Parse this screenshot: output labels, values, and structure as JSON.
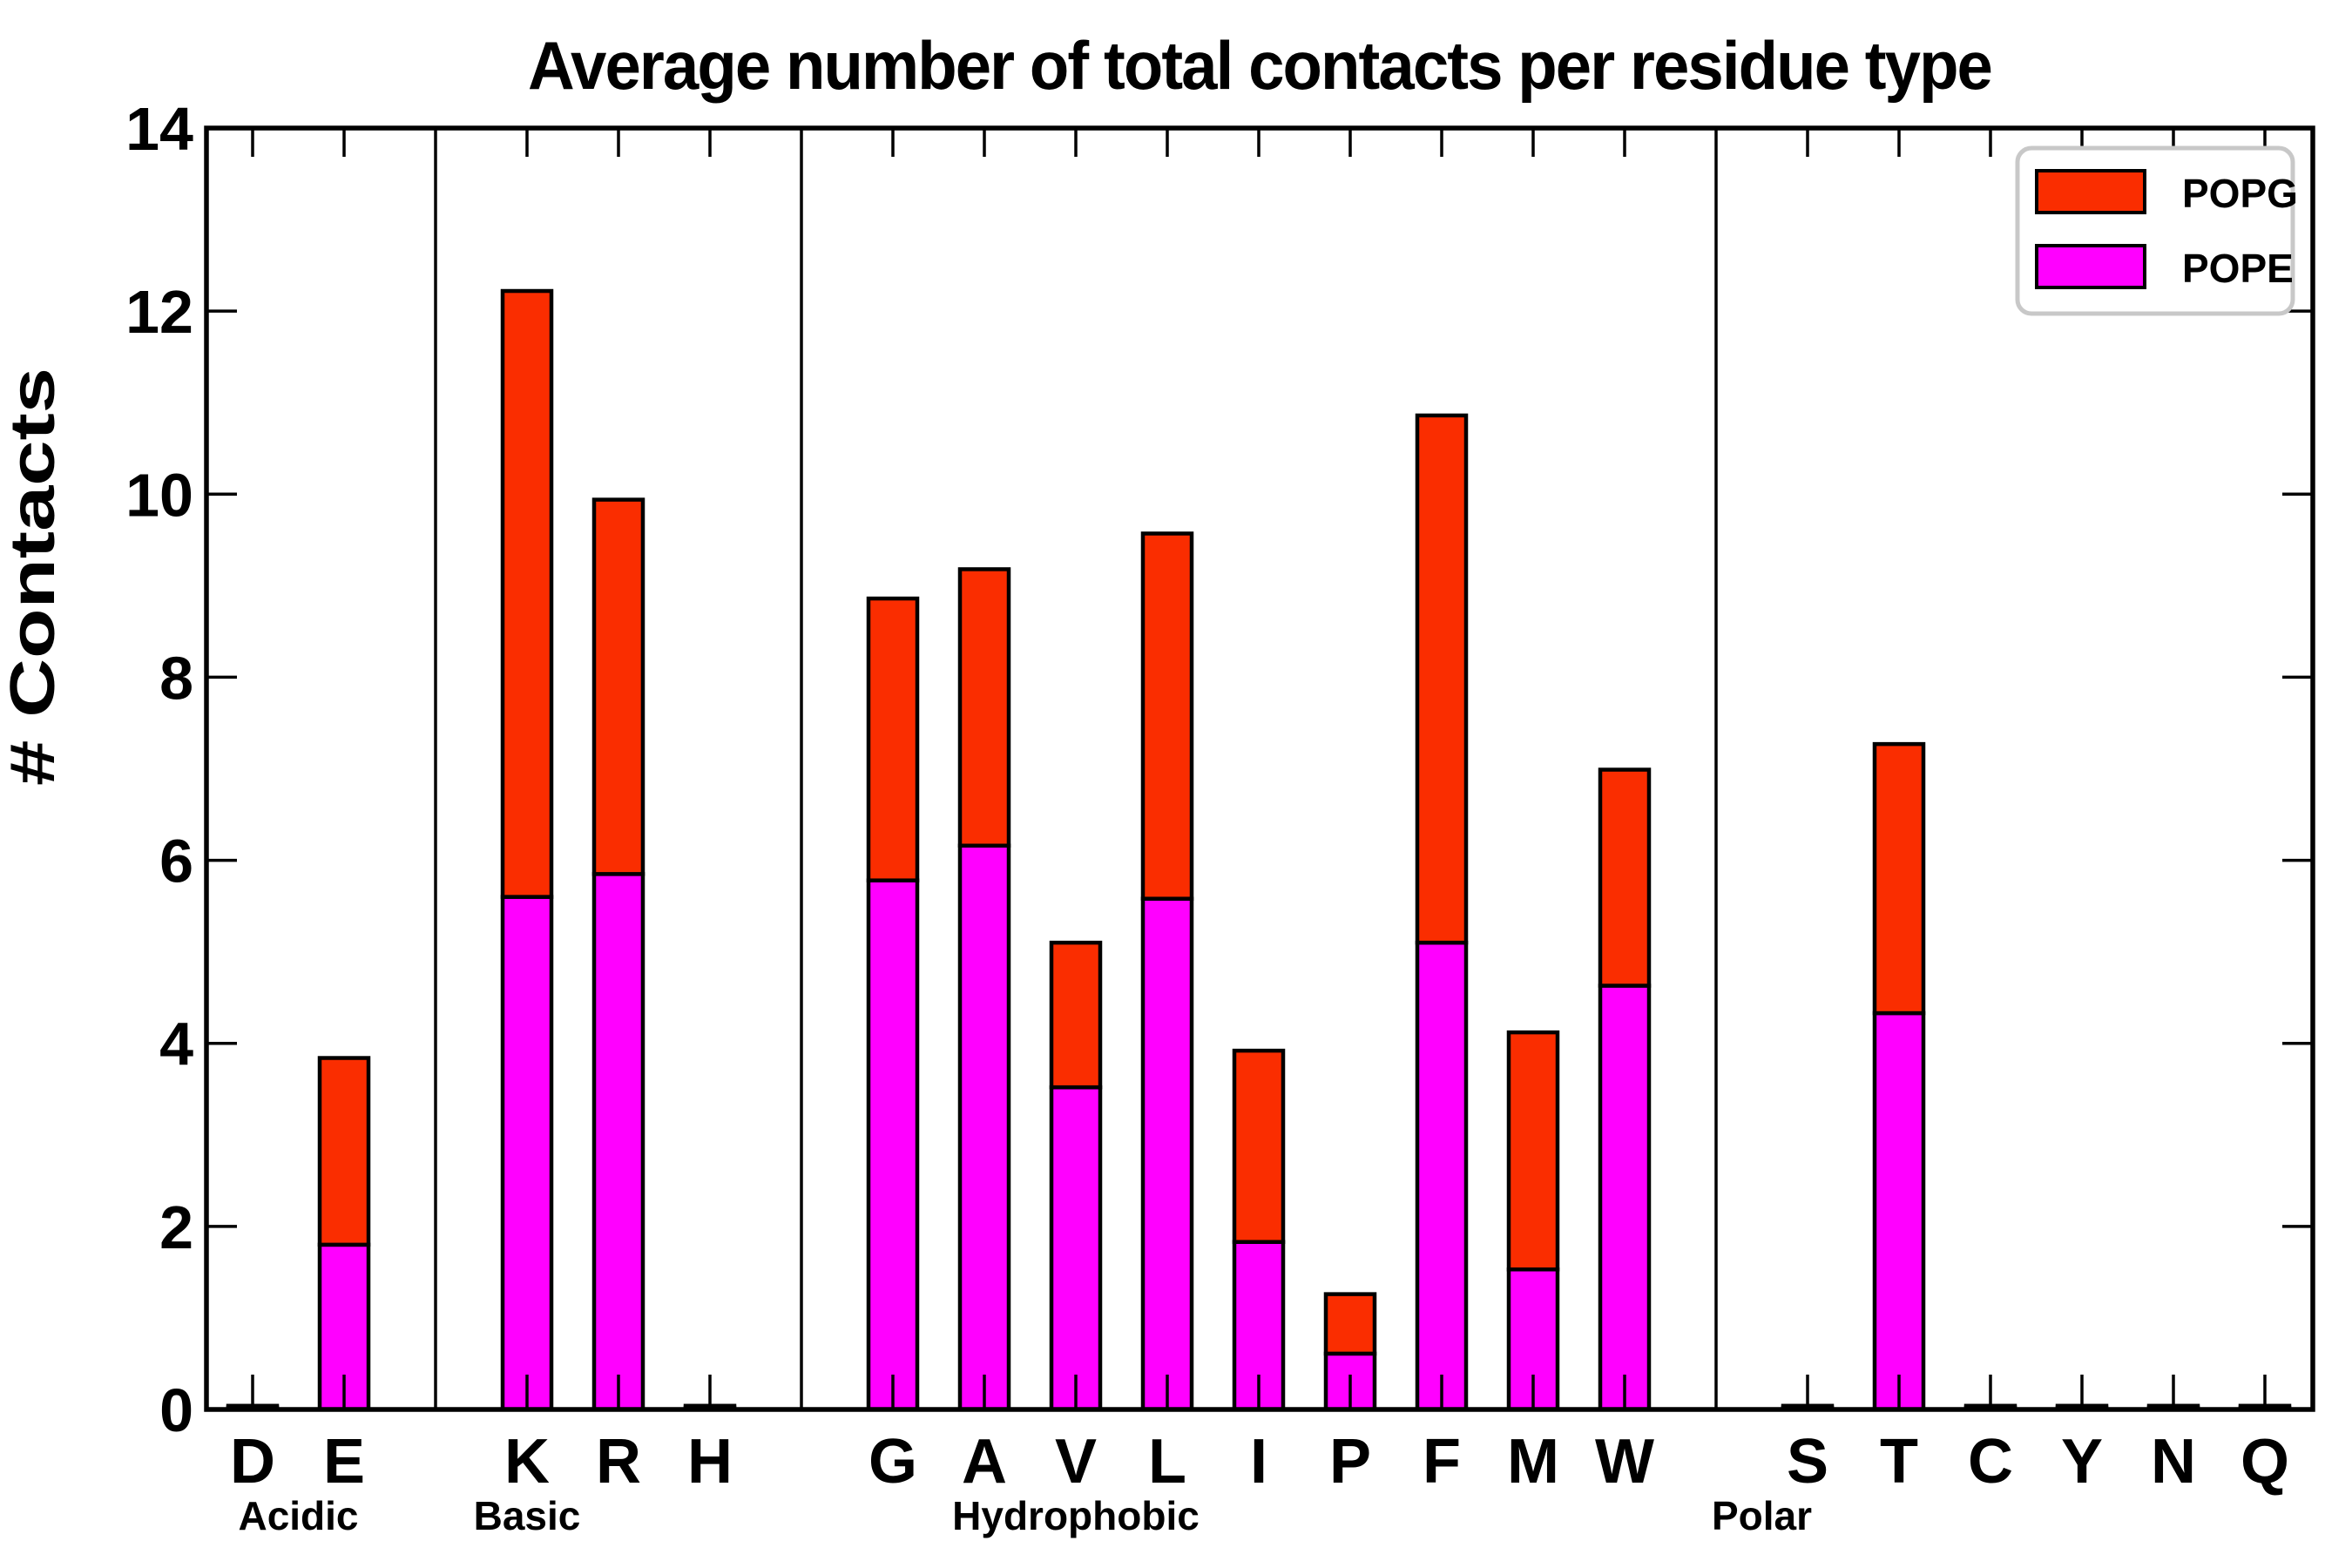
{
  "title": "Average number of total contacts per residue type",
  "ylabel": "# Contacts",
  "colors": {
    "popg": "#FA2D00",
    "pope": "#FF00FF",
    "axis": "#000000",
    "legend_border": "#c8c8c8",
    "background": "#ffffff"
  },
  "legend": {
    "entries": [
      {
        "label": "POPG",
        "color": "#FA2D00"
      },
      {
        "label": "POPE",
        "color": "#FF00FF"
      }
    ],
    "position": "upper right"
  },
  "chart_data": {
    "type": "bar",
    "stacked": true,
    "title": "Average number of total contacts per residue type",
    "xlabel": "",
    "ylabel": "# Contacts",
    "ylim": [
      0,
      14
    ],
    "yticks": [
      0,
      2,
      4,
      6,
      8,
      10,
      12,
      14
    ],
    "grid": false,
    "legend_position": "upper right",
    "categories": [
      "D",
      "E",
      "K",
      "R",
      "H",
      "G",
      "A",
      "V",
      "L",
      "I",
      "P",
      "F",
      "M",
      "W",
      "S",
      "T",
      "C",
      "Y",
      "N",
      "Q"
    ],
    "groups": [
      {
        "label": "Acidic",
        "count": 2
      },
      {
        "label": "Basic",
        "count": 3
      },
      {
        "label": "Hydrophobic",
        "count": 9
      },
      {
        "label": "Polar",
        "count": 6
      }
    ],
    "series": [
      {
        "name": "POPE",
        "color": "#FF00FF",
        "values": [
          0.02,
          1.8,
          5.6,
          5.85,
          0.02,
          5.78,
          6.16,
          3.52,
          5.58,
          1.83,
          0.61,
          5.1,
          1.53,
          4.63,
          0.02,
          4.33,
          0.02,
          0.02,
          0.02,
          0.02
        ]
      },
      {
        "name": "POPG",
        "color": "#FA2D00",
        "values": [
          0.02,
          2.04,
          6.62,
          4.09,
          0.02,
          3.08,
          3.02,
          1.58,
          3.99,
          2.09,
          0.65,
          5.76,
          2.59,
          2.36,
          0.02,
          2.94,
          0.02,
          0.02,
          0.02,
          0.02
        ]
      }
    ],
    "totals": [
      0.04,
      3.84,
      12.22,
      9.94,
      0.04,
      8.86,
      9.18,
      5.1,
      9.57,
      3.92,
      1.26,
      10.86,
      4.12,
      6.99,
      0.04,
      7.27,
      0.04,
      0.04,
      0.04,
      0.04
    ]
  }
}
